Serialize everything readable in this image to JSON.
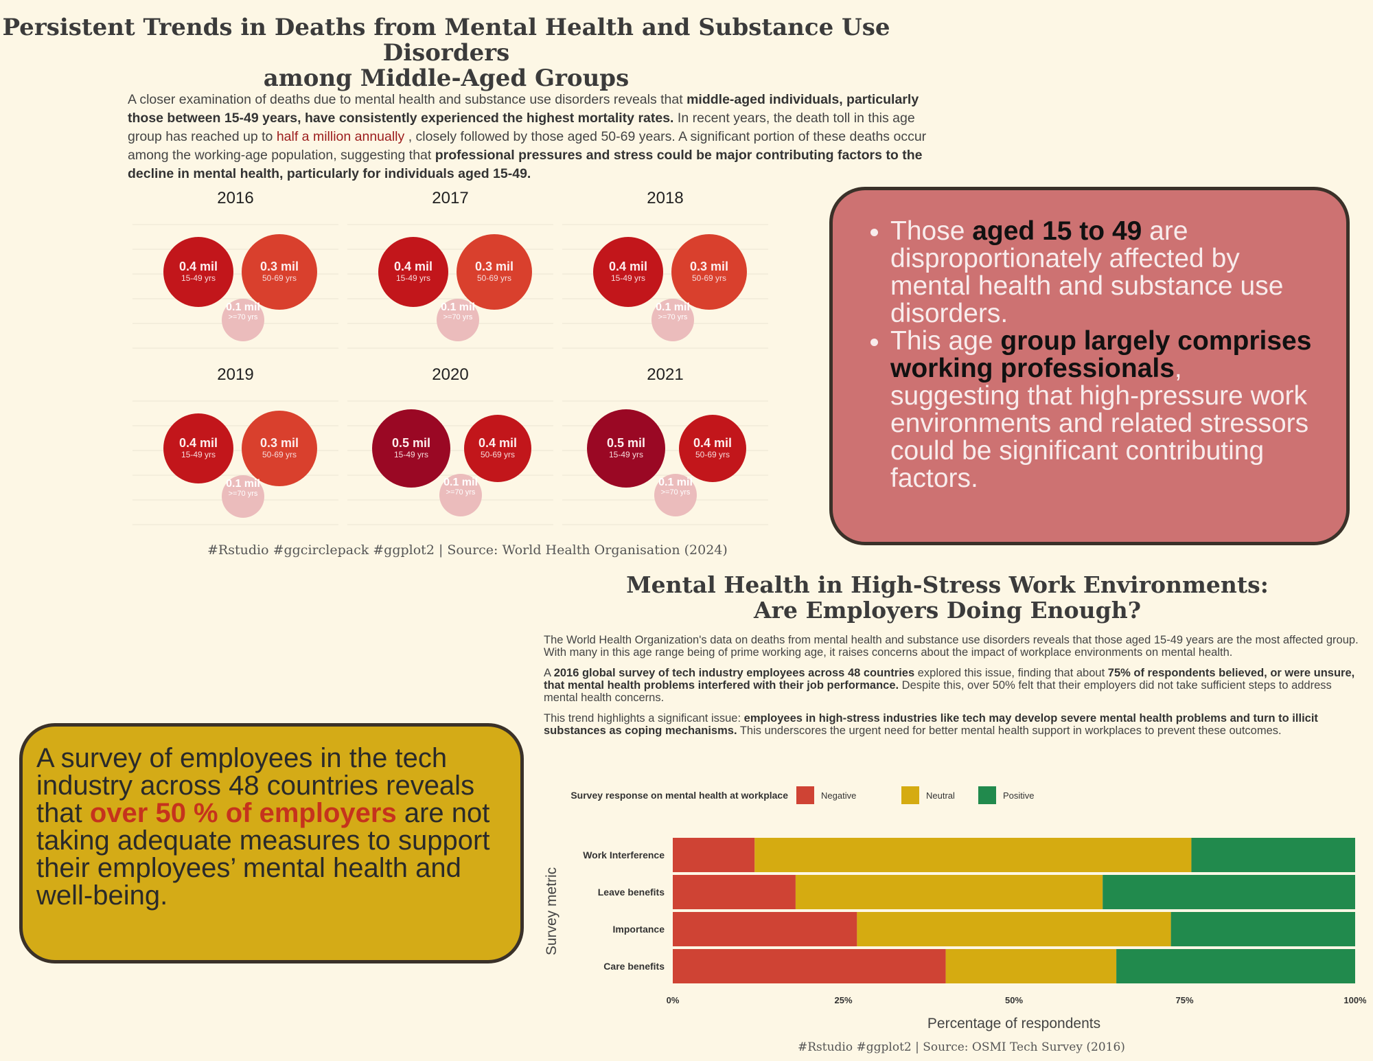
{
  "header": {
    "title_line1": "Persistent Trends in Deaths from Mental Health and Substance Use Disorders",
    "title_line2": "among Middle-Aged Groups"
  },
  "intro": {
    "part1": "A closer examination of deaths due to mental health and substance use disorders reveals that ",
    "bold1": "middle-aged individuals, particularly those between 15-49 years, have consistently experienced the highest mortality rates.",
    "part2": " In recent years, the death toll in this age group has reached up to ",
    "highlight": "half a million annually",
    "part3": " , closely followed by those aged 50-69 years. A significant portion of these deaths occur among the working-age population, suggesting that ",
    "bold2": "professional pressures and stress could be major contributing factors to the decline in mental health, particularly for individuals aged 15-49."
  },
  "caption1": "#Rstudio #ggcirclepack #ggplot2 | Source: World Health Organisation (2024)",
  "callout1": {
    "b1_pre": "Those ",
    "b1_bold": "aged 15 to 49",
    "b1_post": " are disproportionately affected by mental health and substance use disorders.",
    "b2_pre": "This age ",
    "b2_bold": "group largely comprises working professionals",
    "b2_post": ", suggesting that high-pressure work environments and related stressors could be significant contributing factors."
  },
  "section2": {
    "title_line1": "Mental Health in High-Stress Work Environments:",
    "title_line2": "Are Employers Doing Enough?",
    "p1": "The World Health Organization's data on deaths from mental health and substance use disorders reveals that those aged 15-49 years are the most affected group. With many in this age range being of prime working age, it raises concerns about the impact of workplace environments on mental health.",
    "p2_pre": "A ",
    "p2_bold1": "2016 global survey of tech industry employees across 48 countries",
    "p2_mid": " explored this issue, finding that about ",
    "p2_bold2": "75% of respondents believed, or were unsure, that mental health problems interfered with their job performance.",
    "p2_post": " Despite this, over 50% felt that their employers did not take sufficient steps to address mental health concerns.",
    "p3_pre": "This trend highlights a significant issue: ",
    "p3_bold": "employees in high-stress industries like tech may develop severe mental health problems and turn to illicit substances as coping mechanisms.",
    "p3_post": " This underscores the urgent need for better mental health support in workplaces to prevent these outcomes."
  },
  "callout2": {
    "pre": "A survey of employees in the tech industry across 48 countries reveals that ",
    "bold": "over 50 % of employers",
    "post": " are not taking adequate measures to support their employees’ mental health and well-being."
  },
  "caption2": "#Rstudio #ggplot2 | Source: OSMI Tech Survey (2016)",
  "chart_data": [
    {
      "type": "circlepack",
      "panels": [
        {
          "year": "2016",
          "circles": [
            {
              "label": "0.4 mil",
              "group": "15-49 yrs",
              "value": 0.4,
              "color": "#c2161b"
            },
            {
              "label": "0.3 mil",
              "group": "50-69 yrs",
              "value": 0.3,
              "color": "#d9402d"
            },
            {
              "label": "0.1 mil",
              "group": ">=70 yrs",
              "value": 0.1,
              "color": "#ebbcbc"
            }
          ]
        },
        {
          "year": "2017",
          "circles": [
            {
              "label": "0.4 mil",
              "group": "15-49 yrs",
              "value": 0.4,
              "color": "#c2161b"
            },
            {
              "label": "0.3 mil",
              "group": "50-69 yrs",
              "value": 0.3,
              "color": "#d9402d"
            },
            {
              "label": "0.1 mil",
              "group": ">=70 yrs",
              "value": 0.1,
              "color": "#ebbcbc"
            }
          ]
        },
        {
          "year": "2018",
          "circles": [
            {
              "label": "0.4 mil",
              "group": "15-49 yrs",
              "value": 0.4,
              "color": "#c2161b"
            },
            {
              "label": "0.3 mil",
              "group": "50-69 yrs",
              "value": 0.3,
              "color": "#d9402d"
            },
            {
              "label": "0.1 mil",
              "group": ">=70 yrs",
              "value": 0.1,
              "color": "#ebbcbc"
            }
          ]
        },
        {
          "year": "2019",
          "circles": [
            {
              "label": "0.4 mil",
              "group": "15-49 yrs",
              "value": 0.4,
              "color": "#c2161b"
            },
            {
              "label": "0.3 mil",
              "group": "50-69 yrs",
              "value": 0.3,
              "color": "#d9402d"
            },
            {
              "label": "0.1 mil",
              "group": ">=70 yrs",
              "value": 0.1,
              "color": "#ebbcbc"
            }
          ]
        },
        {
          "year": "2020",
          "circles": [
            {
              "label": "0.5 mil",
              "group": "15-49 yrs",
              "value": 0.5,
              "color": "#9a0824"
            },
            {
              "label": "0.4 mil",
              "group": "50-69 yrs",
              "value": 0.4,
              "color": "#c2161b"
            },
            {
              "label": "0.1 mil",
              "group": ">=70 yrs",
              "value": 0.1,
              "color": "#ebbcbc"
            }
          ]
        },
        {
          "year": "2021",
          "circles": [
            {
              "label": "0.5 mil",
              "group": "15-49 yrs",
              "value": 0.5,
              "color": "#9a0824"
            },
            {
              "label": "0.4 mil",
              "group": "50-69 yrs",
              "value": 0.4,
              "color": "#c2161b"
            },
            {
              "label": "0.1 mil",
              "group": ">=70 yrs",
              "value": 0.1,
              "color": "#ebbcbc"
            }
          ]
        }
      ]
    },
    {
      "type": "bar",
      "stacked": true,
      "orientation": "horizontal",
      "legend_title": "Survey response on mental health at workplace",
      "legend_placement": "top",
      "categories": [
        "Work Interference",
        "Leave benefits",
        "Importance",
        "Care benefits"
      ],
      "series": [
        {
          "name": "Negative",
          "color": "#cf4334",
          "values": [
            12,
            18,
            27,
            40
          ]
        },
        {
          "name": "Neutral",
          "color": "#d5ab11",
          "values": [
            64,
            45,
            46,
            25
          ]
        },
        {
          "name": "Positive",
          "color": "#218a4d",
          "values": [
            24,
            37,
            27,
            35
          ]
        }
      ],
      "xlabel": "Percentage of respondents",
      "ylabel": "Survey metric",
      "xticks": [
        "0%",
        "25%",
        "50%",
        "75%",
        "100%"
      ],
      "xlim": [
        0,
        100
      ]
    }
  ]
}
